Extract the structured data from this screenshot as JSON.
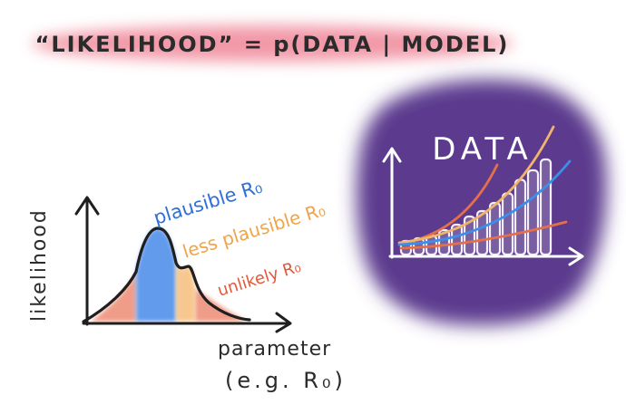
{
  "banner": {
    "text": "“LIKELIHOOD” = p(DATA | MODEL)",
    "highlight_color": "#f0879a"
  },
  "curve_panel": {
    "y_label": "likelihood",
    "x_label_line1": "parameter",
    "x_label_line2": "(e.g. R₀)",
    "labels": [
      {
        "text": "plausible R₀",
        "color": "#2f6fd6"
      },
      {
        "text": "less plausible R₀",
        "color": "#f0a54a"
      },
      {
        "text": "unlikely R₀",
        "color": "#e4583a"
      }
    ],
    "region_colors": {
      "plausible": "#3b82e8",
      "less_plausible": "#f5b56a",
      "unlikely": "#e8684a"
    }
  },
  "data_panel": {
    "title": "DATA",
    "blob_color": "#5b3a8e",
    "bar_levels": [
      0.1,
      0.12,
      0.14,
      0.18,
      0.22,
      0.28,
      0.32,
      0.38,
      0.45,
      0.55,
      0.62,
      0.7
    ],
    "curve_colors": [
      "#e4704a",
      "#f0b46a",
      "#3b8fe8",
      "#e4704a"
    ]
  }
}
